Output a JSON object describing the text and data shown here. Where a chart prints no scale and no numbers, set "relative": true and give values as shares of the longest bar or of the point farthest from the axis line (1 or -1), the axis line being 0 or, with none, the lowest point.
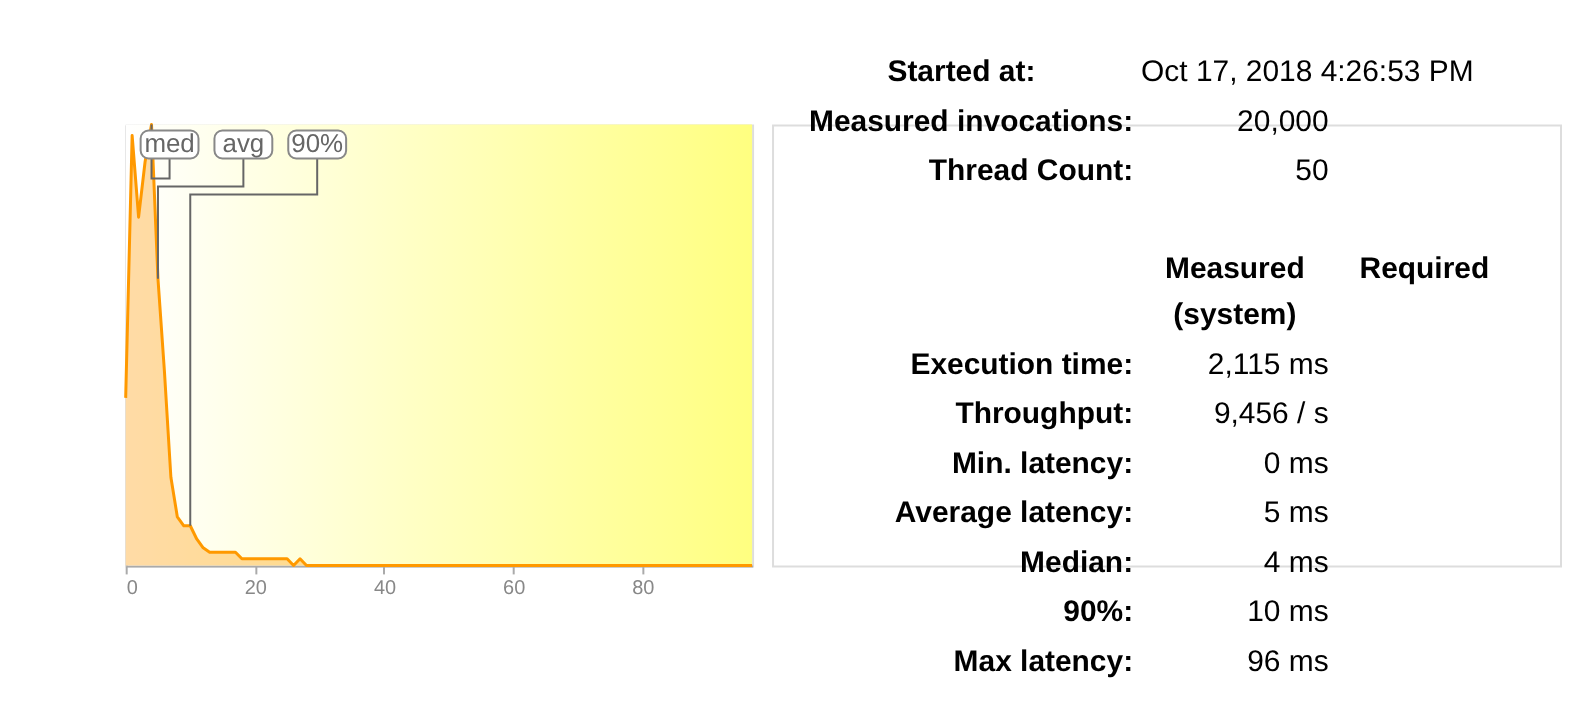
{
  "chart_data": [
    {
      "type": "area",
      "relative": true,
      "x": [
        0,
        1,
        2,
        3,
        4,
        5,
        6,
        7,
        8,
        9,
        10,
        11,
        12,
        13,
        17,
        18,
        25,
        26,
        27,
        28,
        97
      ],
      "series": [
        {
          "color": "#ff9900",
          "values": [
            0.38,
            0.975,
            0.79,
            0.915,
            1.0,
            0.65,
            0.44,
            0.2,
            0.11,
            0.09,
            0.09,
            0.06,
            0.04,
            0.03,
            0.03,
            0.015,
            0.015,
            0,
            0.015,
            0,
            0
          ]
        }
      ],
      "xlim": [
        0,
        97
      ],
      "xticks": [
        0,
        20,
        40,
        60,
        80
      ],
      "annotations": [
        {
          "text": "med",
          "x": 4,
          "y": 1.0
        },
        {
          "text": "avg",
          "x": 5,
          "y": 0.65
        },
        {
          "text": "90%",
          "x": 10,
          "y": 0.09
        }
      ]
    },
    {
      "type": "other",
      "annotations": [
        "Started at:",
        "Oct 17, 2018 4:26:53 PM",
        "Measured invocations:",
        "20,000",
        "Thread Count:",
        "50",
        "Measured (system)",
        "Required",
        "Execution time:",
        "2,115 ms",
        "Throughput:",
        "9,456 / s",
        "Min. latency:",
        "0 ms",
        "Average latency:",
        "5 ms",
        "Median:",
        "4 ms",
        "90%:",
        "10 ms",
        "Max latency:",
        "96 ms"
      ]
    }
  ]
}
